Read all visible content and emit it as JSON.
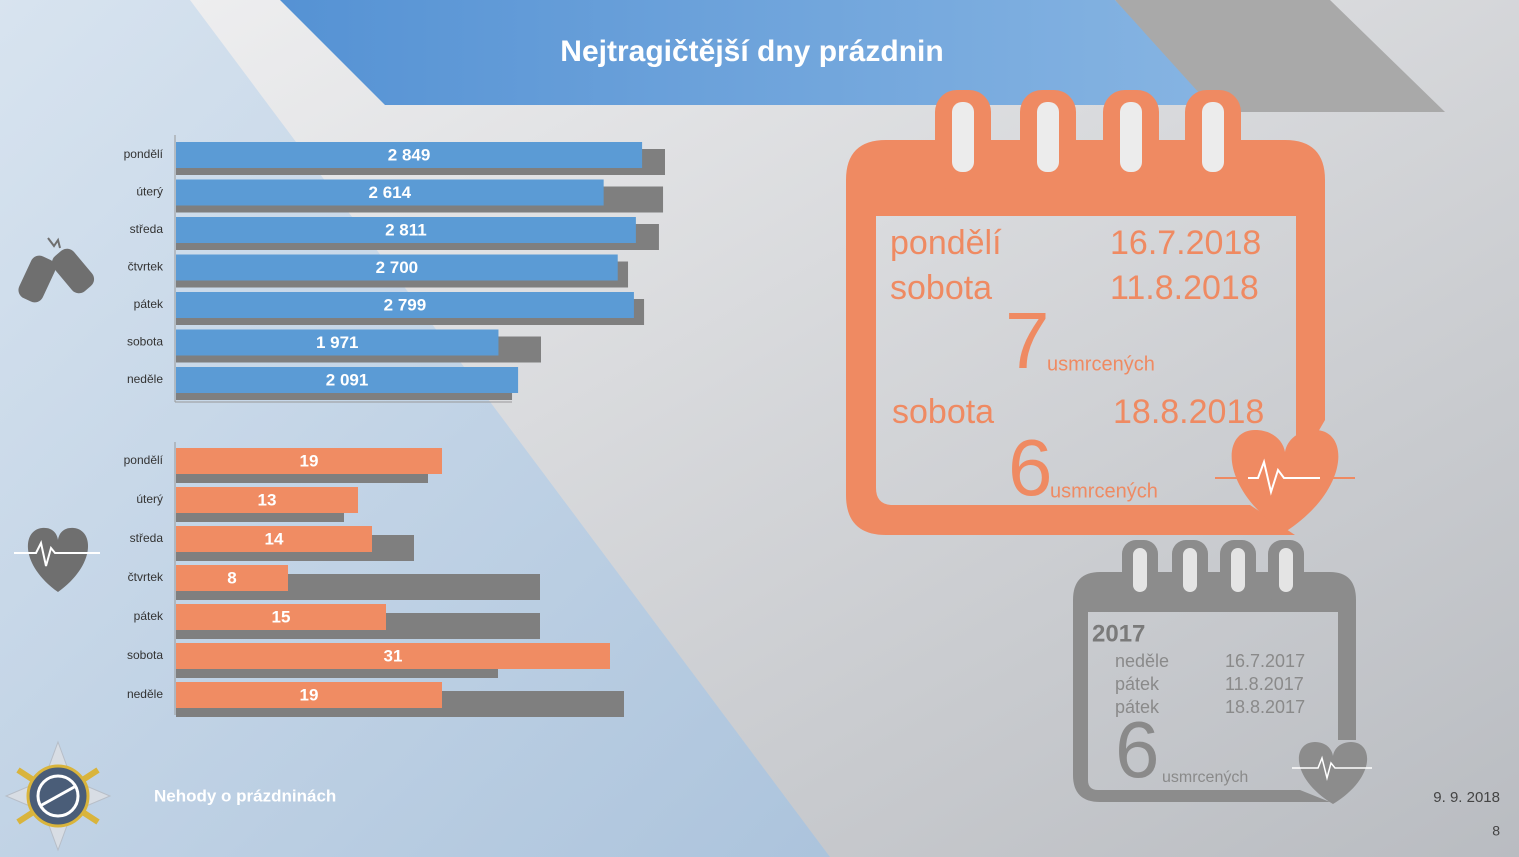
{
  "title": "Nejtragičtější dny prázdnin",
  "chart_data": [
    {
      "type": "bar",
      "orientation": "horizontal",
      "categories": [
        "pondělí",
        "úterý",
        "středa",
        "čtvrtek",
        "pátek",
        "sobota",
        "neděle"
      ],
      "series": [
        {
          "color": "#5b9bd5",
          "values": [
            2849,
            2614,
            2811,
            2700,
            2799,
            1971,
            2091
          ],
          "value_labels": [
            "2 849",
            "2 614",
            "2 811",
            "2 700",
            "2 799",
            "1 971",
            "2 091"
          ]
        },
        {
          "color": "#7f7f7f",
          "values": [
            2989,
            2977,
            2952,
            2763,
            2861,
            2231,
            2054
          ]
        }
      ]
    },
    {
      "type": "bar",
      "orientation": "horizontal",
      "categories": [
        "pondělí",
        "úterý",
        "středa",
        "čtvrtek",
        "pátek",
        "sobota",
        "neděle"
      ],
      "series": [
        {
          "color": "#f08c63",
          "values": [
            19,
            13,
            14,
            8,
            15,
            31,
            19
          ]
        },
        {
          "color": "#7f7f7f",
          "values": [
            18,
            12,
            17,
            26,
            26,
            23,
            32
          ]
        }
      ]
    }
  ],
  "calendar_2018": {
    "groups": [
      {
        "entries": [
          {
            "day": "pondělí",
            "date": "16.7.2018"
          },
          {
            "day": "sobota",
            "date": "11.8.2018"
          }
        ],
        "deaths": 7,
        "unit": "usmrcených"
      },
      {
        "entries": [
          {
            "day": "sobota",
            "date": "18.8.2018"
          }
        ],
        "deaths": 6,
        "unit": "usmrcených"
      }
    ]
  },
  "calendar_2017": {
    "year": 2017,
    "entries": [
      {
        "day": "neděle",
        "date": "16.7.2017"
      },
      {
        "day": "pátek",
        "date": "11.8.2017"
      },
      {
        "day": "pátek",
        "date": "18.8.2017"
      }
    ],
    "deaths": 6,
    "unit": "usmrcených"
  },
  "footer": {
    "label": "Nehody o prázdninách",
    "date": "9. 9. 2018",
    "page": 8
  }
}
